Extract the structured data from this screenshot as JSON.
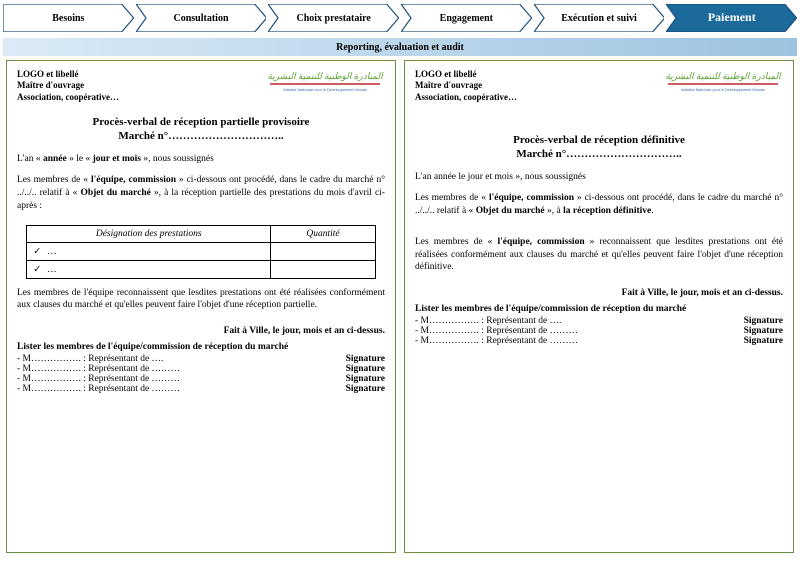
{
  "chevrons": {
    "items": [
      "Besoins",
      "Consultation",
      "Choix prestataire",
      "Engagement",
      "Exécution et suivi",
      "Paiement"
    ],
    "active_index": 5,
    "border_color": "#1c4f7c",
    "fill_inactive": "#ffffff",
    "fill_active": "#1c6a9b",
    "text_active_color": "#ffffff"
  },
  "reporting_bar": {
    "label": "Reporting, évaluation et audit",
    "gradient_from": "#dbeaf6",
    "gradient_to": "#9cc3e0"
  },
  "frame_border_color": "#6a8f3e",
  "indh_logo": {
    "top_script_color": "#5aa02c",
    "underline_color": "#c1272d",
    "sub_color": "#3a6fb0",
    "sub_text": "Initiative Nationale pour le Développement Humain"
  },
  "left": {
    "logo_lines": [
      "LOGO et libellé",
      "Maître d'ouvrage",
      "Association, coopérative…"
    ],
    "title_l1": "Procès-verbal de réception partielle provisoire",
    "title_l2": "Marché n°…………………………..",
    "p1_pre": "L'an « ",
    "p1_b1": "année",
    "p1_mid1": " » le « ",
    "p1_b2": "jour et mois",
    "p1_post": " », nous soussignés",
    "p2": "Les membres de « l'équipe, commission » ci-dessous ont procédé, dans le cadre du marché n° ../../.. relatif à « Objet du marché », à la réception partielle des prestations du mois d'avril ci-après :",
    "tbl_h1": "Désignation des prestations",
    "tbl_h2": "Quantité",
    "tbl_r1": "…",
    "tbl_r2": "…",
    "p3": "Les membres de l'équipe reconnaissent que lesdites prestations ont été réalisées conformément aux clauses du marché et qu'elles peuvent faire l'objet d'une réception partielle.",
    "fait": "Fait à Ville, le jour, mois et an ci-dessus.",
    "sig_head": "Lister les membres de l'équipe/commission de réception du marché",
    "sig_rows": [
      {
        "l": "- M……………. : Représentant de ….",
        "r": "Signature"
      },
      {
        "l": "- M……………. : Représentant de ………",
        "r": "Signature"
      },
      {
        "l": "- M……………. : Représentant de ………",
        "r": "Signature"
      },
      {
        "l": "- M……………. : Représentant de ………",
        "r": "Signature"
      }
    ]
  },
  "right": {
    "logo_lines": [
      "LOGO et libellé",
      "Maître d'ouvrage",
      "Association, coopérative…"
    ],
    "title_l1": "Procès-verbal de réception définitive",
    "title_l2": "Marché n°…………………………..",
    "p1": "L'an   année   le   jour et mois », nous soussignés",
    "p2_a": "Les membres de « ",
    "p2_b": "l'équipe, commission",
    "p2_c": " » ci-dessous ont procédé, dans le cadre du marché n° ../../.. relatif à « ",
    "p2_d": "Objet du marché",
    "p2_e": " », à ",
    "p2_f": "la réception définitive",
    "p2_g": ".",
    "p3_a": "Les membres de « ",
    "p3_b": "l'équipe, commission",
    "p3_c": " » reconnaissent que lesdites prestations ont été réalisées conformément aux clauses du marché et qu'elles peuvent faire l'objet d'une réception définitive.",
    "fait": "Fait à Ville, le jour, mois et an ci-dessus.",
    "sig_head": "Lister les membres de l'équipe/commission de réception du marché",
    "sig_rows": [
      {
        "l": "- M……………. : Représentant de ….",
        "r": "Signature"
      },
      {
        "l": "- M……………. : Représentant de ………",
        "r": "Signature"
      },
      {
        "l": "- M……………. : Représentant de ………",
        "r": "Signature"
      }
    ]
  }
}
